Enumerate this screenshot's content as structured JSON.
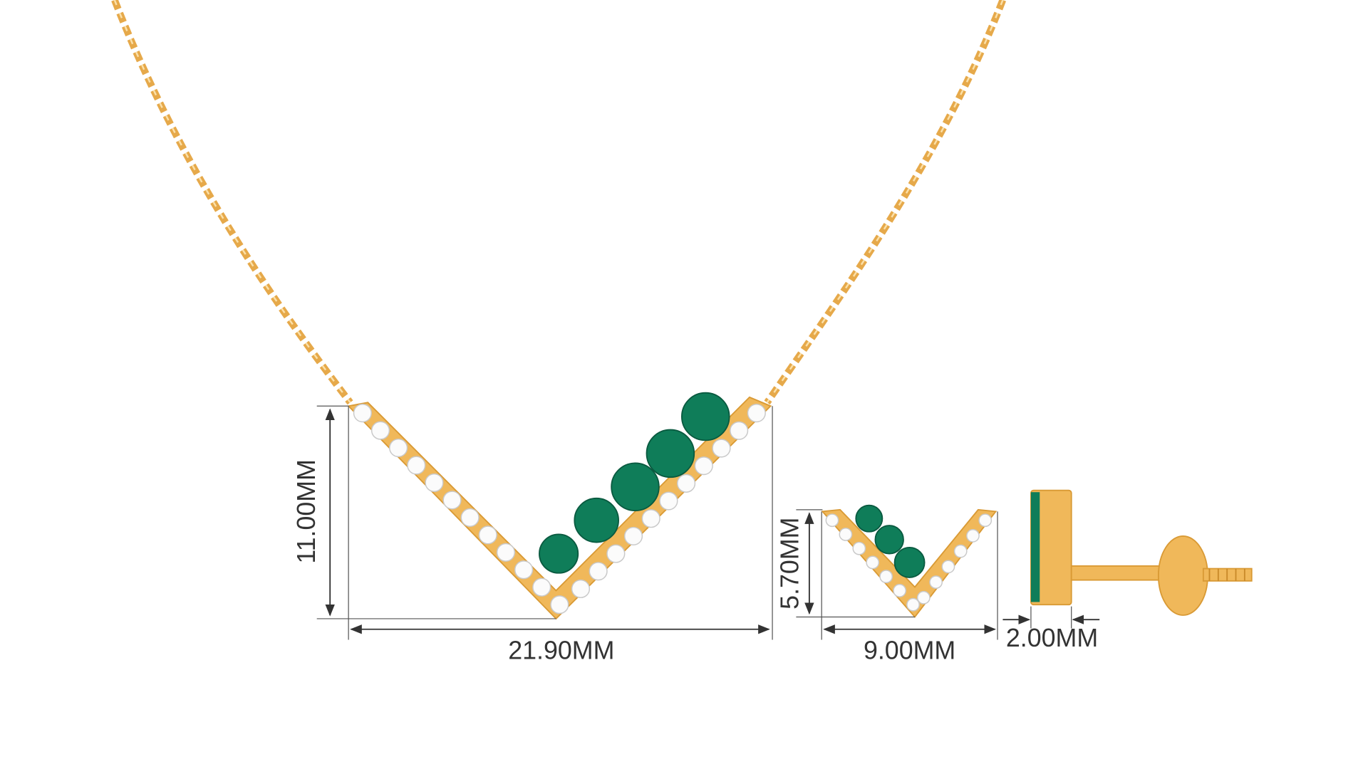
{
  "necklace": {
    "height": "11.00MM",
    "width": "21.90MM"
  },
  "earring": {
    "height": "5.70MM",
    "width": "9.00MM",
    "depth": "2.00MM"
  }
}
